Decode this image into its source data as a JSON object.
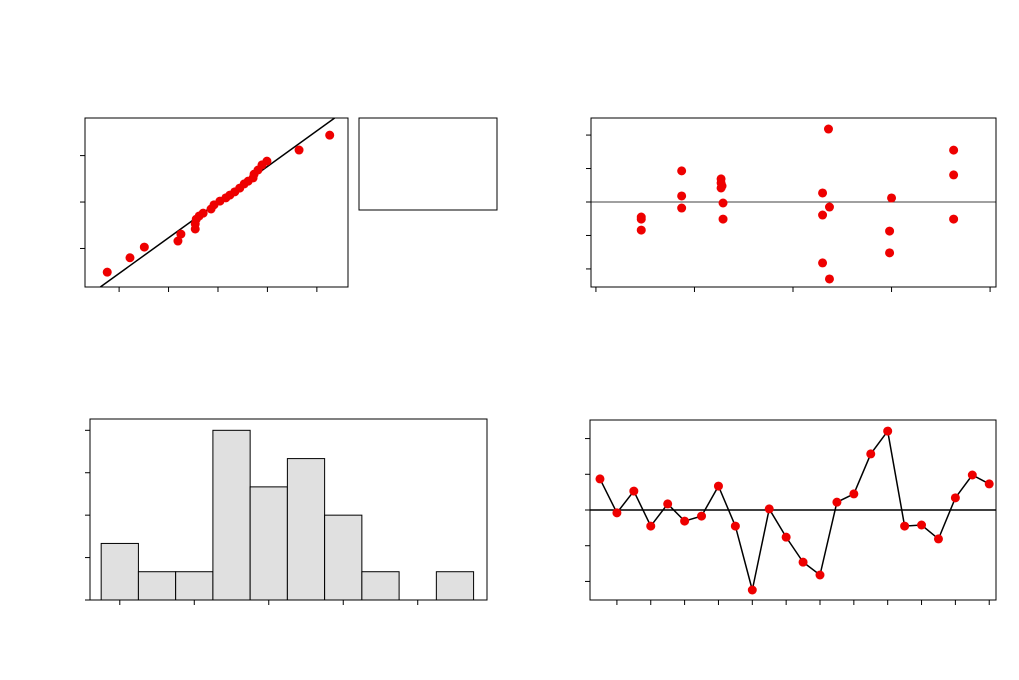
{
  "chart_data": [
    {
      "type": "scatter",
      "color": "#ee0000",
      "x": [
        -2.24,
        -1.78,
        -1.49,
        -0.81,
        -0.75,
        -0.46,
        -0.46,
        -0.44,
        -0.38,
        -0.3,
        -0.14,
        -0.08,
        0.04,
        0.16,
        0.24,
        0.34,
        0.44,
        0.53,
        0.61,
        0.71,
        0.73,
        0.81,
        0.89,
        0.99,
        1.64,
        2.26
      ],
      "values": [
        -1.51,
        -1.2,
        -0.97,
        -0.84,
        -0.69,
        -0.58,
        -0.47,
        -0.37,
        -0.3,
        -0.24,
        -0.15,
        -0.06,
        0.02,
        0.09,
        0.15,
        0.22,
        0.3,
        0.39,
        0.45,
        0.52,
        0.6,
        0.69,
        0.8,
        0.88,
        1.12,
        1.44
      ],
      "line": {
        "x": [
          -2.38,
          2.36
        ],
        "y": [
          -1.83,
          1.81
        ],
        "color": "#000000"
      },
      "xlim": [
        -2.69,
        2.63
      ],
      "ylim": [
        -1.83,
        1.81
      ],
      "xticks": [
        -2,
        -1,
        0,
        1,
        2
      ],
      "yticks": [
        -1,
        0,
        1
      ]
    },
    {
      "type": "scatter",
      "color": "#ee0000",
      "x": [
        0.46,
        0.46,
        0.46,
        0.87,
        0.87,
        0.87,
        1.27,
        1.27,
        1.28,
        1.27,
        1.29,
        1.29,
        2.36,
        2.3,
        2.37,
        2.3,
        2.3,
        2.37,
        3.0,
        2.98,
        2.98,
        3.63,
        3.63,
        3.63
      ],
      "values": [
        -0.45,
        -0.51,
        -0.84,
        0.93,
        0.18,
        -0.18,
        0.69,
        0.57,
        0.48,
        0.42,
        -0.03,
        -0.51,
        2.18,
        0.27,
        -0.15,
        -0.39,
        -1.82,
        -2.3,
        0.12,
        -0.87,
        -1.52,
        1.55,
        0.81,
        -0.51
      ],
      "hline": 0,
      "xlim": [
        -0.05,
        4.06
      ],
      "ylim": [
        -2.54,
        2.51
      ],
      "xticks": [
        0,
        1,
        2,
        3,
        4
      ],
      "yticks": [
        -2,
        -1,
        0,
        1,
        2
      ]
    },
    {
      "type": "histogram",
      "color": "#e0e0e0",
      "bins": [
        -2.25,
        -1.75,
        -1.25,
        -0.75,
        -0.25,
        0.25,
        0.75,
        1.25,
        1.75,
        2.25,
        2.75
      ],
      "values": [
        2,
        1,
        1,
        6,
        4,
        5,
        3,
        1,
        0,
        1
      ],
      "xlim": [
        -2.4,
        2.93
      ],
      "ylim": [
        0,
        6.4
      ],
      "xticks": [
        -2,
        -1,
        0,
        1,
        2
      ],
      "yticks": [
        0,
        1.5,
        3,
        4.5,
        6
      ]
    },
    {
      "type": "line",
      "color": "#ee0000",
      "x": [
        1,
        2,
        3,
        4,
        5,
        6,
        7,
        8,
        9,
        10,
        11,
        12,
        13,
        14,
        15,
        16,
        17,
        18,
        19,
        20,
        21,
        22,
        23,
        24
      ],
      "values": [
        0.87,
        -0.08,
        0.53,
        -0.45,
        0.17,
        -0.31,
        -0.17,
        0.67,
        -0.45,
        -2.24,
        0.03,
        -0.76,
        -1.46,
        -1.82,
        0.22,
        0.45,
        1.57,
        2.21,
        -0.45,
        -0.42,
        -0.81,
        0.34,
        0.98,
        0.73
      ],
      "hline": 0,
      "xlim": [
        0.41,
        24.4
      ],
      "ylim": [
        -2.52,
        2.52
      ],
      "xticks": [
        2,
        4,
        6,
        8,
        10,
        12,
        14,
        16,
        18,
        20,
        22,
        24
      ],
      "yticks": [
        -2,
        -1,
        0,
        1,
        2
      ]
    }
  ]
}
